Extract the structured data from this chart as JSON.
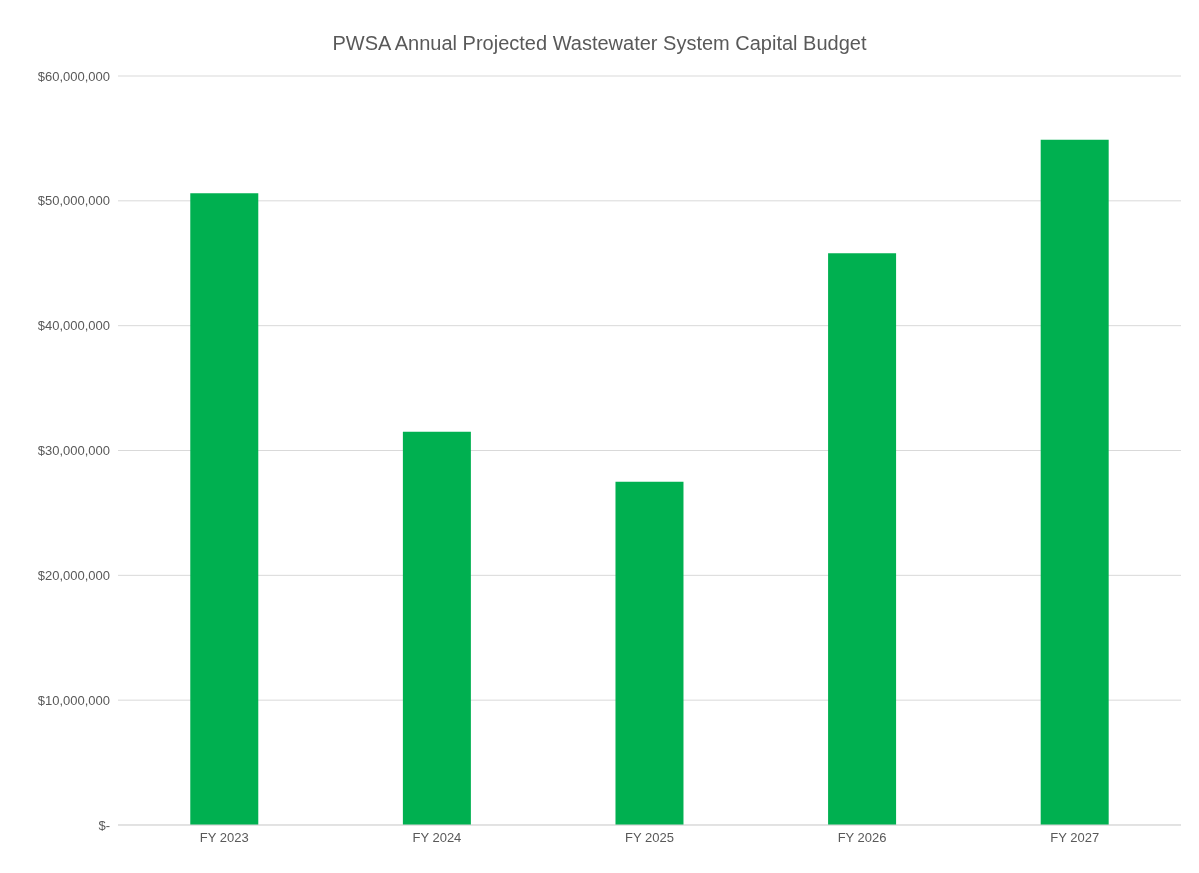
{
  "chart_data": {
    "type": "bar",
    "title": "PWSA Annual Projected Wastewater System Capital Budget",
    "categories": [
      "FY 2023",
      "FY 2024",
      "FY 2025",
      "FY 2026",
      "FY 2027"
    ],
    "values": [
      50600000,
      31500000,
      27500000,
      45800000,
      54900000
    ],
    "color": "#00b050",
    "ylim": [
      0,
      60000000
    ],
    "yticks": [
      {
        "value": 0,
        "label": "$-"
      },
      {
        "value": 10000000,
        "label": "$10,000,000"
      },
      {
        "value": 20000000,
        "label": "$20,000,000"
      },
      {
        "value": 30000000,
        "label": "$30,000,000"
      },
      {
        "value": 40000000,
        "label": "$40,000,000"
      },
      {
        "value": 50000000,
        "label": "$50,000,000"
      },
      {
        "value": 60000000,
        "label": "$60,000,000"
      }
    ],
    "grid": "y"
  }
}
